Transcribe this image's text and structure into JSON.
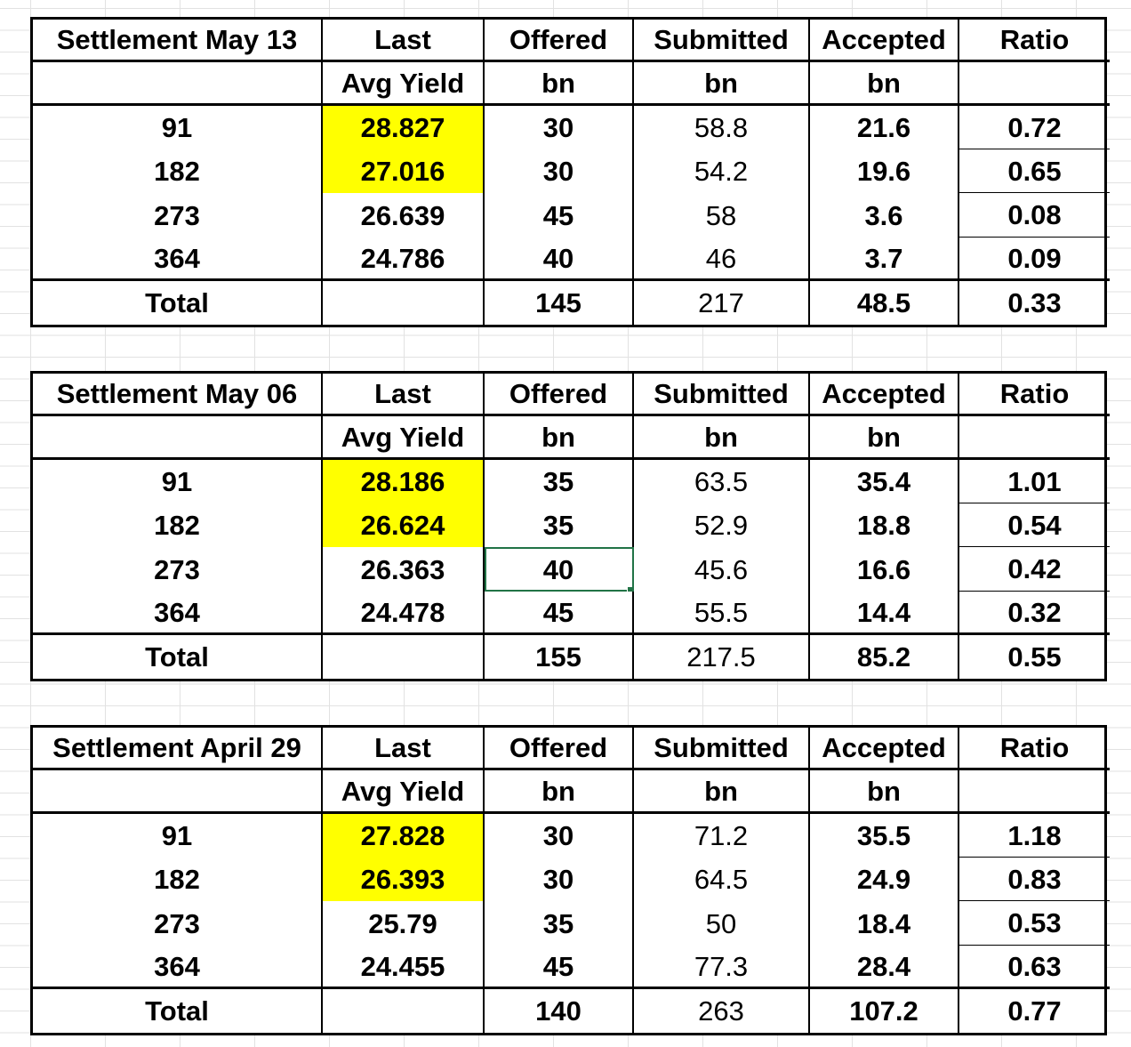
{
  "tables": [
    {
      "title": "Settlement May 13",
      "headers1": [
        "Last",
        "Offered",
        "Submitted",
        "Accepted",
        "Ratio"
      ],
      "headers2": [
        "Avg Yield",
        "bn",
        "bn",
        "bn",
        ""
      ],
      "rows": [
        {
          "term": "91",
          "yield": "28.827",
          "offered": "30",
          "submitted": "58.8",
          "accepted": "21.6",
          "ratio": "0.72"
        },
        {
          "term": "182",
          "yield": "27.016",
          "offered": "30",
          "submitted": "54.2",
          "accepted": "19.6",
          "ratio": "0.65"
        },
        {
          "term": "273",
          "yield": "26.639",
          "offered": "45",
          "submitted": "58",
          "accepted": "3.6",
          "ratio": "0.08"
        },
        {
          "term": "364",
          "yield": "24.786",
          "offered": "40",
          "submitted": "46",
          "accepted": "3.7",
          "ratio": "0.09"
        }
      ],
      "total": {
        "label": "Total",
        "offered": "145",
        "submitted": "217",
        "accepted": "48.5",
        "ratio": "0.33"
      }
    },
    {
      "title": "Settlement May 06",
      "headers1": [
        "Last",
        "Offered",
        "Submitted",
        "Accepted",
        "Ratio"
      ],
      "headers2": [
        "Avg Yield",
        "bn",
        "bn",
        "bn",
        ""
      ],
      "rows": [
        {
          "term": "91",
          "yield": "28.186",
          "offered": "35",
          "submitted": "63.5",
          "accepted": "35.4",
          "ratio": "1.01"
        },
        {
          "term": "182",
          "yield": "26.624",
          "offered": "35",
          "submitted": "52.9",
          "accepted": "18.8",
          "ratio": "0.54"
        },
        {
          "term": "273",
          "yield": "26.363",
          "offered": "40",
          "submitted": "45.6",
          "accepted": "16.6",
          "ratio": "0.42"
        },
        {
          "term": "364",
          "yield": "24.478",
          "offered": "45",
          "submitted": "55.5",
          "accepted": "14.4",
          "ratio": "0.32"
        }
      ],
      "total": {
        "label": "Total",
        "offered": "155",
        "submitted": "217.5",
        "accepted": "85.2",
        "ratio": "0.55"
      }
    },
    {
      "title": "Settlement April 29",
      "headers1": [
        "Last",
        "Offered",
        "Submitted",
        "Accepted",
        "Ratio"
      ],
      "headers2": [
        "Avg Yield",
        "bn",
        "bn",
        "bn",
        ""
      ],
      "rows": [
        {
          "term": "91",
          "yield": "27.828",
          "offered": "30",
          "submitted": "71.2",
          "accepted": "35.5",
          "ratio": "1.18"
        },
        {
          "term": "182",
          "yield": "26.393",
          "offered": "30",
          "submitted": "64.5",
          "accepted": "24.9",
          "ratio": "0.83"
        },
        {
          "term": "273",
          "yield": "25.79",
          "offered": "35",
          "submitted": "50",
          "accepted": "18.4",
          "ratio": "0.53"
        },
        {
          "term": "364",
          "yield": "24.455",
          "offered": "45",
          "submitted": "77.3",
          "accepted": "28.4",
          "ratio": "0.63"
        }
      ],
      "total": {
        "label": "Total",
        "offered": "140",
        "submitted": "263",
        "accepted": "107.2",
        "ratio": "0.77"
      }
    }
  ],
  "highlight_color": "#ffff00",
  "selection_color": "#217346"
}
